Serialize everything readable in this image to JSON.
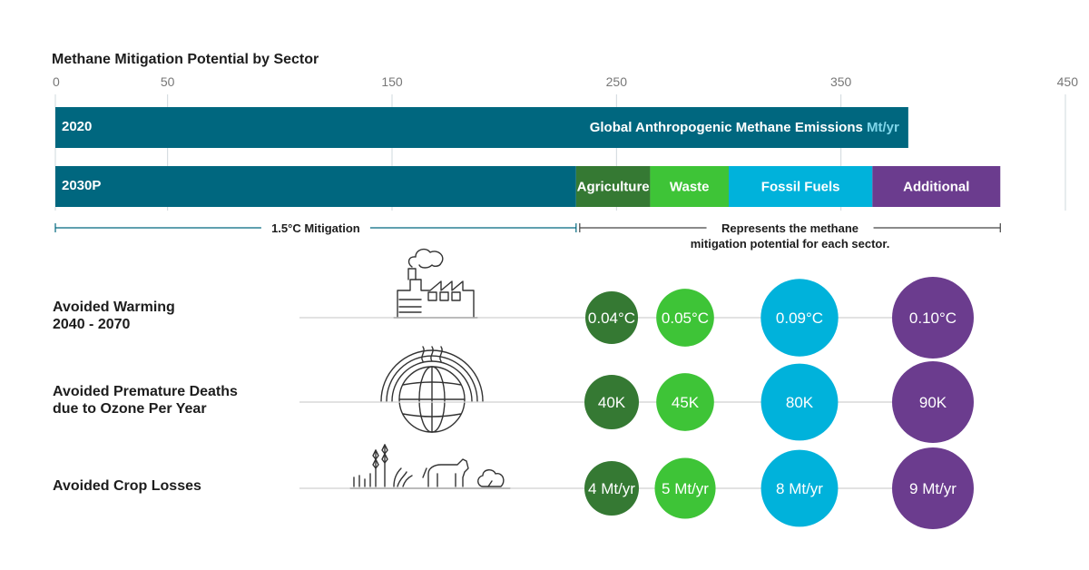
{
  "chart_data": {
    "type": "bar",
    "title": "Methane Mitigation Potential by Sector",
    "xlim": [
      0,
      450
    ],
    "x_ticks": [
      0,
      50,
      150,
      250,
      350,
      450
    ],
    "grid": true,
    "bars": [
      {
        "label": "2020",
        "segments": [
          {
            "name": "",
            "value": 380,
            "color": "#00677f"
          }
        ],
        "inline_note": "Global Anthropogenic Methane Emissions",
        "inline_unit": "Mt/yr",
        "inline_unit_color": "#7fd6ea"
      },
      {
        "label": "2030P",
        "segments": [
          {
            "name": "",
            "value": 232,
            "color": "#00677f"
          },
          {
            "name": "Agriculture",
            "value": 33,
            "color": "#357933"
          },
          {
            "name": "Waste",
            "value": 35,
            "color": "#3ec437"
          },
          {
            "name": "Fossil Fuels",
            "value": 64,
            "color": "#00b2db"
          },
          {
            "name": "Additional",
            "value": 57,
            "color": "#6b3c8e"
          }
        ]
      }
    ],
    "brackets": [
      {
        "label": "1.5°C Mitigation",
        "from": 0,
        "to": 232
      },
      {
        "label_lines": [
          "Represents the methane",
          "mitigation potential for each sector."
        ],
        "from": 232,
        "to": 421
      }
    ],
    "bubble_rows": [
      {
        "label_lines": [
          "Avoided Warming",
          "2040 - 2070"
        ],
        "icon": "factory-icon",
        "values": [
          "0.04°C",
          "0.05°C",
          "0.09°C",
          "0.10°C"
        ],
        "sizes": [
          0.04,
          0.05,
          0.09,
          0.1
        ]
      },
      {
        "label_lines": [
          "Avoided Premature Deaths",
          "due to Ozone Per Year"
        ],
        "icon": "globe-heat-icon",
        "values": [
          "40K",
          "45K",
          "80K",
          "90K"
        ],
        "sizes": [
          40,
          45,
          80,
          90
        ]
      },
      {
        "label_lines": [
          "Avoided Crop Losses"
        ],
        "icon": "crops-livestock-icon",
        "values": [
          "4 Mt/yr",
          "5 Mt/yr",
          "8 Mt/yr",
          "9 Mt/yr"
        ],
        "sizes": [
          4,
          5,
          8,
          9
        ]
      }
    ],
    "bubble_colors": [
      "#357933",
      "#3ec437",
      "#00b2db",
      "#6b3c8e"
    ]
  }
}
